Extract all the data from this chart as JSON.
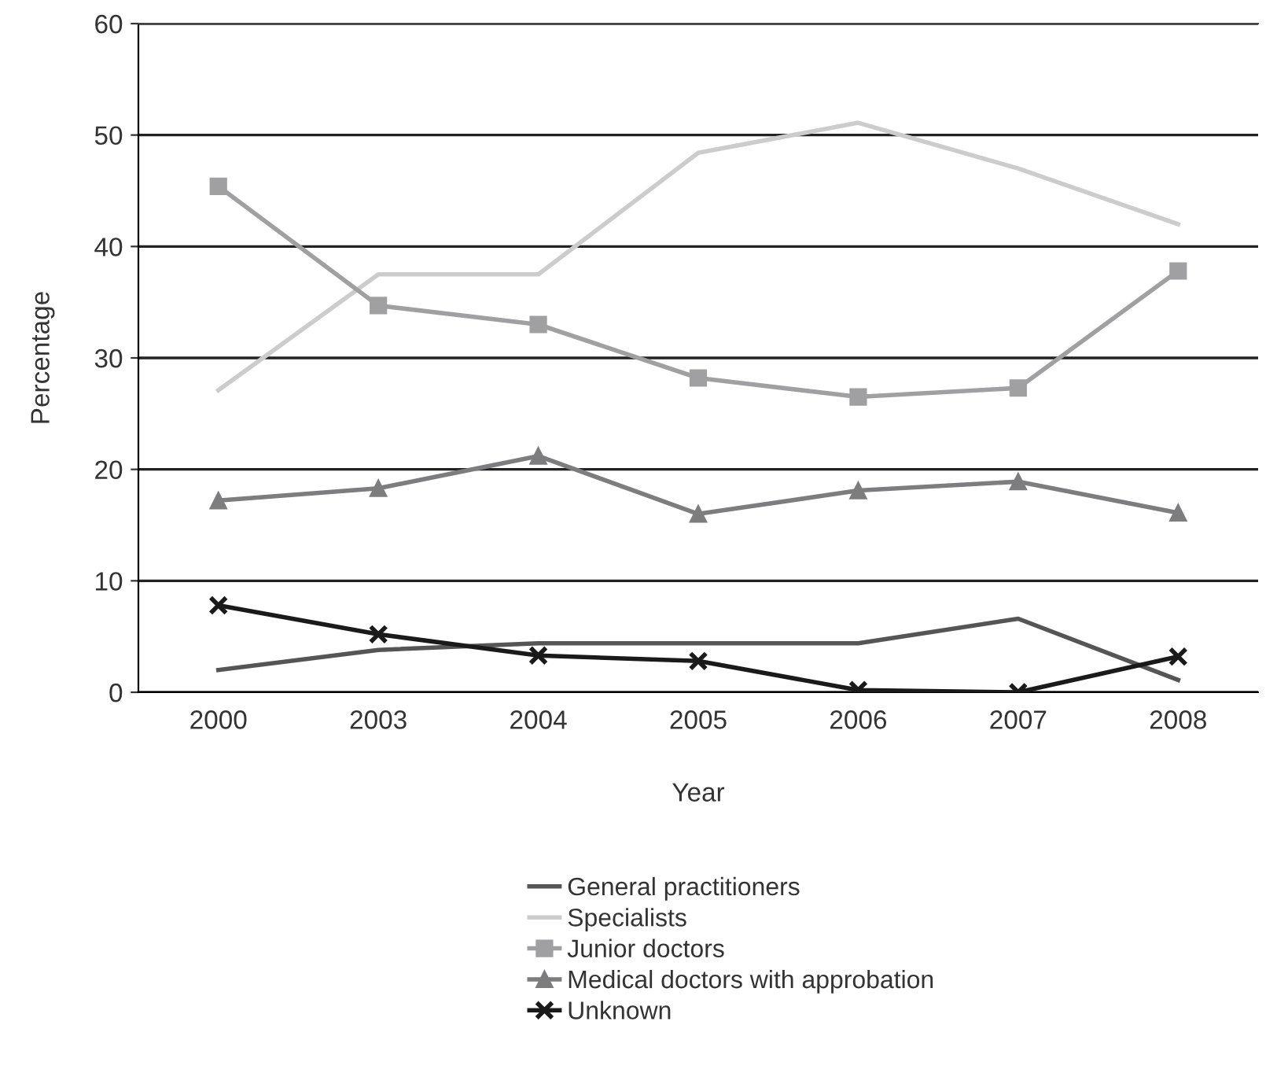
{
  "chart_data": {
    "type": "line",
    "xlabel": "Year",
    "ylabel": "Percentage",
    "categories": [
      "2000",
      "2003",
      "2004",
      "2005",
      "2006",
      "2007",
      "2008"
    ],
    "ylim": [
      0,
      60
    ],
    "yticks": [
      0,
      10,
      20,
      30,
      40,
      50,
      60
    ],
    "grid": "y",
    "legend": "bottom",
    "series": [
      {
        "name": "General practitioners",
        "color": "#555555",
        "marker": "none",
        "values": [
          2.0,
          3.8,
          4.4,
          4.4,
          4.4,
          6.6,
          1.1
        ]
      },
      {
        "name": "Specialists",
        "color": "#cccccc",
        "marker": "none",
        "values": [
          27.1,
          37.5,
          37.5,
          48.4,
          51.1,
          47.0,
          42.0
        ]
      },
      {
        "name": "Junior doctors",
        "color": "#a0a0a2",
        "marker": "square",
        "values": [
          45.4,
          34.7,
          33.0,
          28.2,
          26.5,
          27.3,
          37.8
        ]
      },
      {
        "name": "Medical doctors with approbation",
        "color": "#7d7d7f",
        "marker": "triangle",
        "values": [
          17.2,
          18.3,
          21.2,
          16.0,
          18.1,
          18.9,
          16.1
        ]
      },
      {
        "name": "Unknown",
        "color": "#1a1a1a",
        "marker": "cross",
        "values": [
          7.8,
          5.2,
          3.3,
          2.8,
          0.2,
          0.0,
          3.2
        ]
      }
    ]
  }
}
